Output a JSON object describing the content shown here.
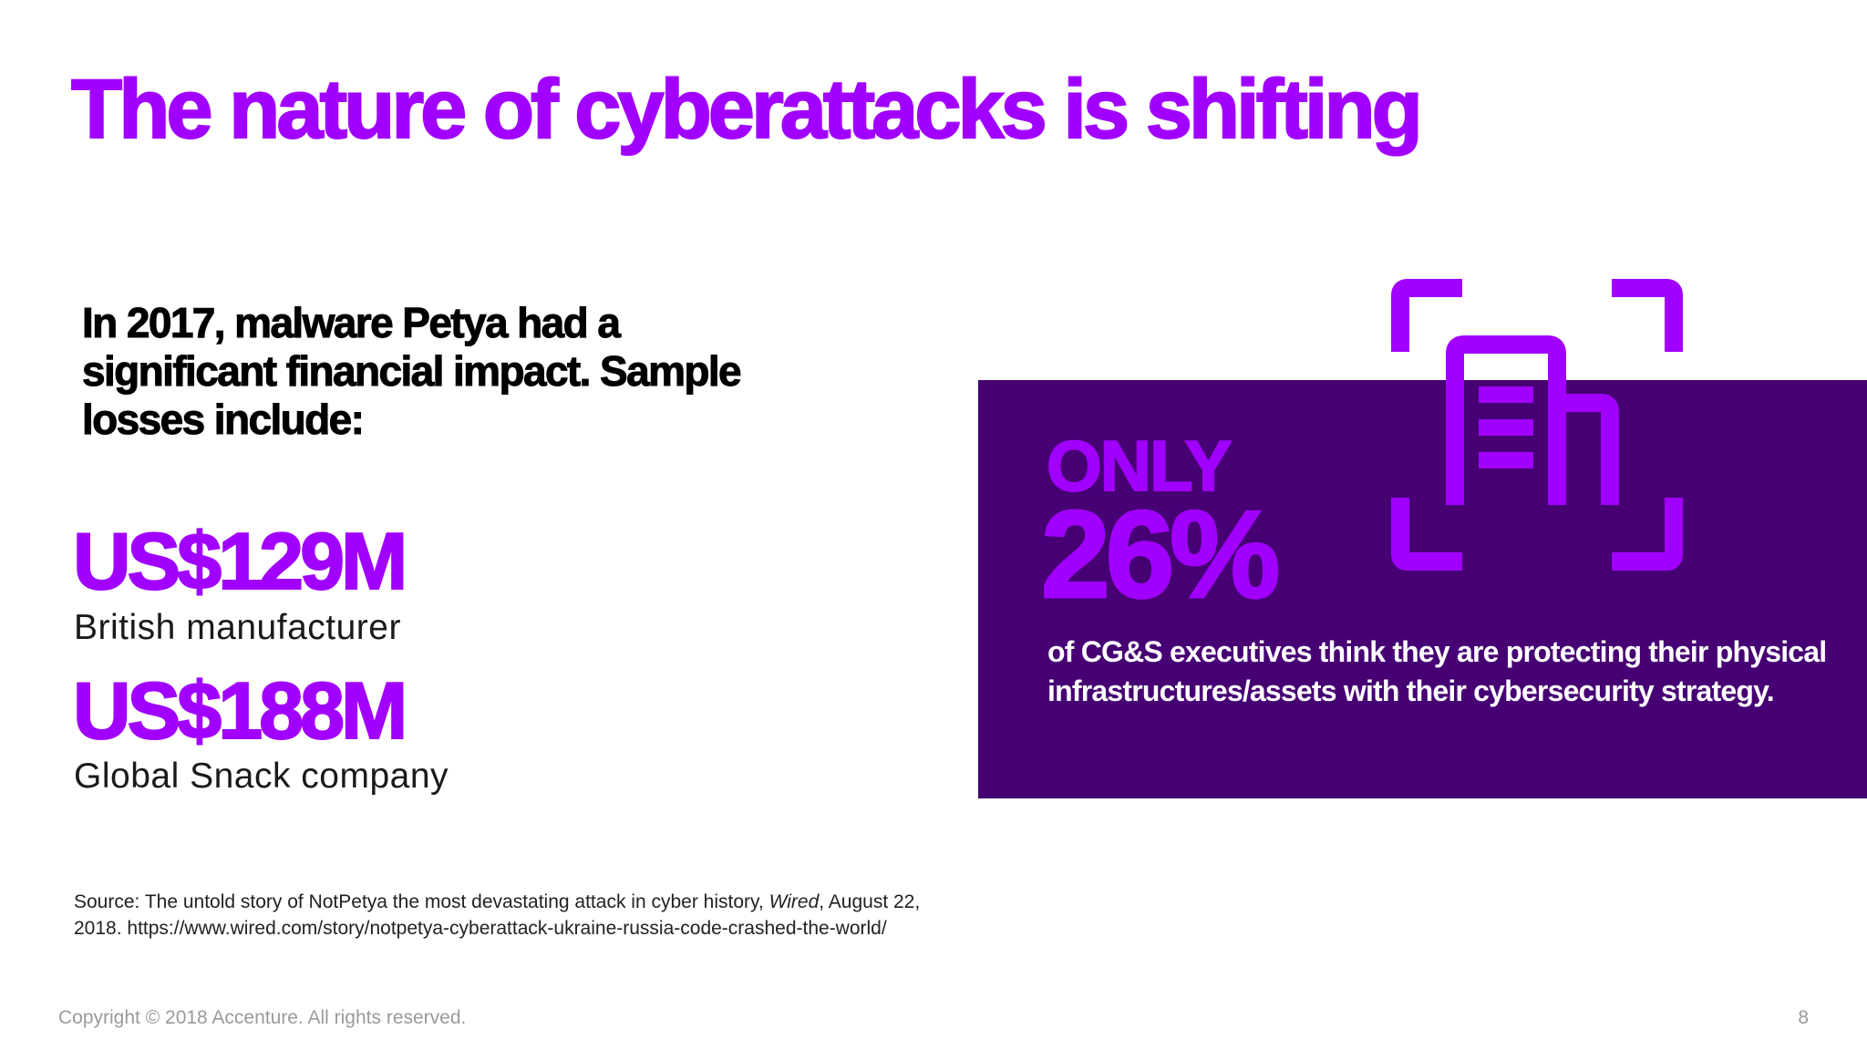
{
  "slide": {
    "title": "The nature of cyberattacks is shifting",
    "intro": "In 2017, malware Petya had a significant financial impact. Sample losses include:",
    "losses": [
      {
        "value": "US$129M",
        "label": "British manufacturer"
      },
      {
        "value": "US$188M",
        "label": "Global Snack company"
      }
    ],
    "source": {
      "prefix": "Source: The untold story of NotPetya the most devastating attack in cyber history, ",
      "publication": "Wired",
      "suffix": ", August 22, 2018. https://www.wired.com/story/notpetya-cyberattack-ukraine-russia-code-crashed-the-world/"
    },
    "stat": {
      "qualifier": "ONLY",
      "percent": "26%",
      "description": "of CG&S executives think they are protecting their physical infrastructures/assets with their cybersecurity strategy.",
      "icon": "building-scan-icon"
    },
    "footer": {
      "copyright": "Copyright © 2018 Accenture. All rights reserved.",
      "page_number": "8"
    }
  },
  "colors": {
    "accent_purple": "#a100ff",
    "dark_purple": "#460073",
    "text": "#000000",
    "footer_gray": "#9a9a9a"
  }
}
